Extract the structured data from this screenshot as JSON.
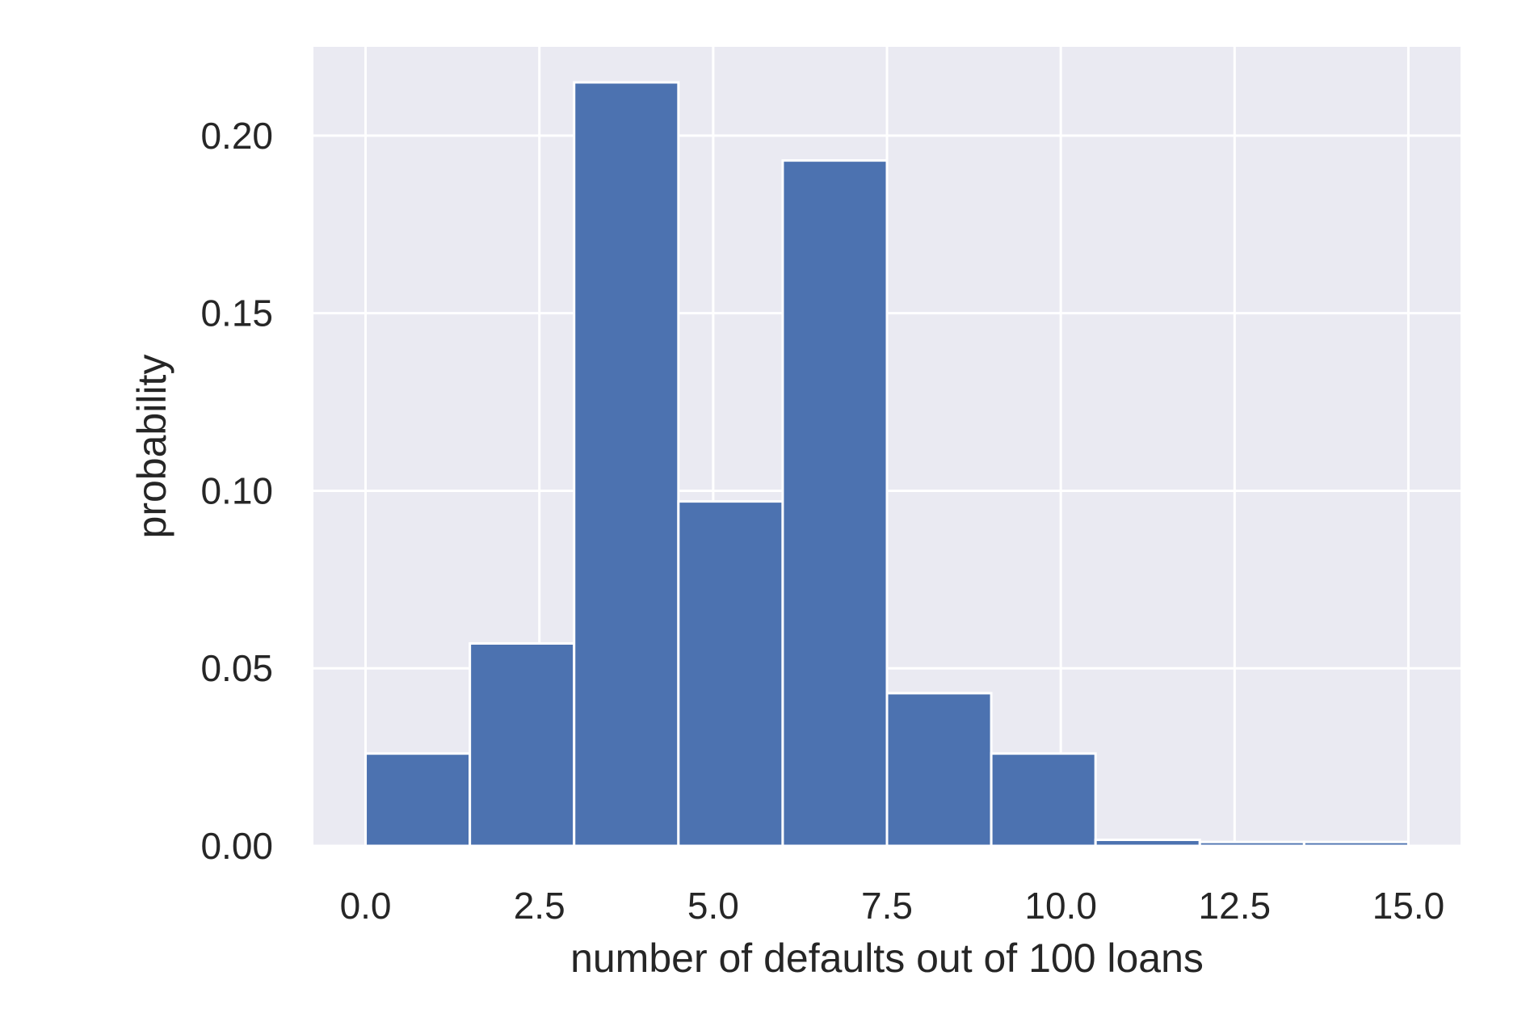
{
  "chart_data": {
    "type": "bar",
    "title": "",
    "xlabel": "number of defaults out of 100 loans",
    "ylabel": "probability",
    "xlim": [
      -0.75,
      15.75
    ],
    "ylim": [
      0,
      0.225
    ],
    "xticks": [
      0.0,
      2.5,
      5.0,
      7.5,
      10.0,
      12.5,
      15.0
    ],
    "xtick_labels": [
      "0.0",
      "2.5",
      "5.0",
      "7.5",
      "10.0",
      "12.5",
      "15.0"
    ],
    "yticks": [
      0.0,
      0.05,
      0.1,
      0.15,
      0.2
    ],
    "ytick_labels": [
      "0.00",
      "0.05",
      "0.10",
      "0.15",
      "0.20"
    ],
    "bin_edges": [
      0.0,
      1.5,
      3.0,
      4.5,
      6.0,
      7.5,
      9.0,
      10.5,
      12.0,
      13.5,
      15.0
    ],
    "values": [
      0.026,
      0.057,
      0.215,
      0.097,
      0.193,
      0.043,
      0.026,
      0.0017,
      0.0011,
      0.0011
    ],
    "grid": true,
    "legend": "none",
    "colors": {
      "bar": "#4c72b0",
      "bar_edge": "#ffffff",
      "plot_background": "#eaeaf2",
      "grid": "#ffffff",
      "text": "#262626"
    }
  }
}
